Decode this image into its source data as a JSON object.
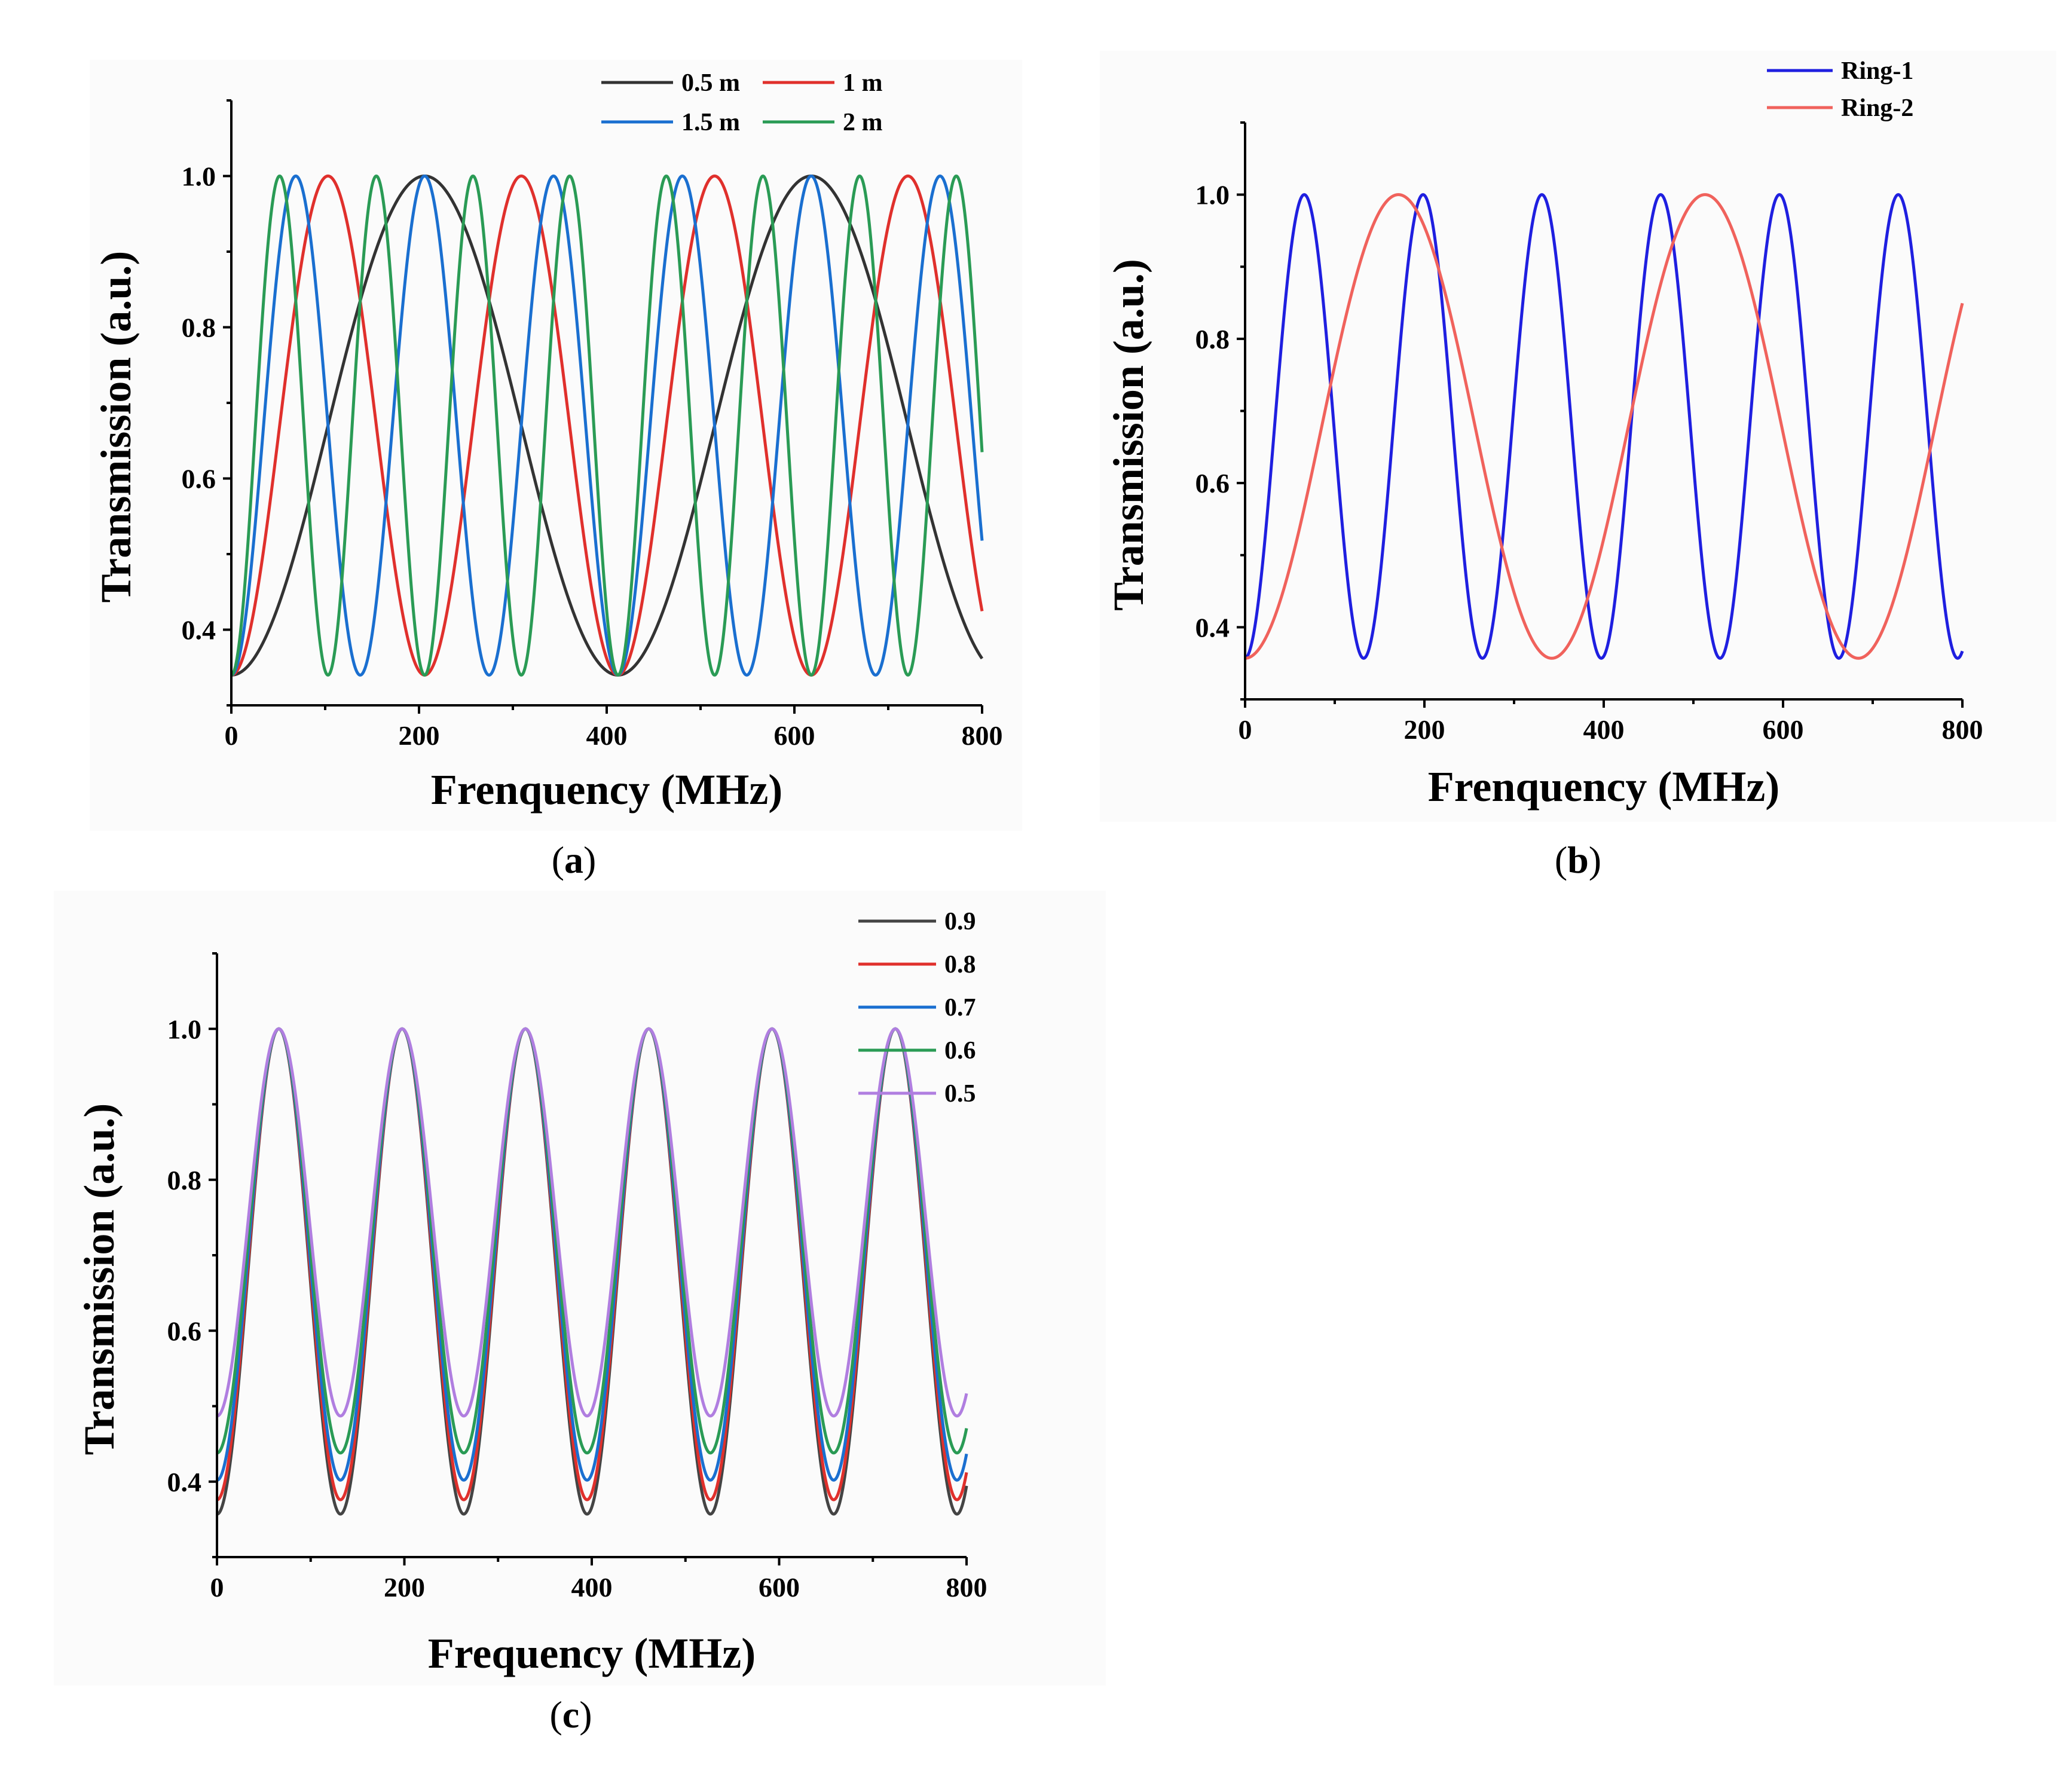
{
  "figure": {
    "panel_labels": [
      "a",
      "b",
      "c"
    ]
  },
  "chart_data": [
    {
      "id": "a",
      "type": "line",
      "xlabel": "Frenquency (MHz)",
      "ylabel": "Transmission (a.u.)",
      "xlim": [
        0,
        800
      ],
      "ylim": [
        0.3,
        1.1
      ],
      "xticks": [
        0,
        200,
        400,
        600,
        800
      ],
      "yticks": [
        0.4,
        0.6,
        0.8,
        1.0
      ],
      "xtick_labels": [
        "0",
        "200",
        "400",
        "600",
        "800"
      ],
      "ytick_labels": [
        "0.4",
        "0.6",
        "0.8",
        "1.0"
      ],
      "legend_position": "top-right",
      "model": {
        "min": 0.34,
        "max": 1.0
      },
      "series": [
        {
          "name": "0.5 m",
          "color": "#333333",
          "fsr": 412,
          "peak_offset": 206,
          "sharpness": 1.0
        },
        {
          "name": "1 m",
          "color": "#e0302c",
          "fsr": 206,
          "peak_offset": 103,
          "sharpness": 1.0
        },
        {
          "name": "1.5 m",
          "color": "#1a6fd0",
          "fsr": 137.3,
          "peak_offset": 68.7,
          "sharpness": 1.0
        },
        {
          "name": "2 m",
          "color": "#2a9b55",
          "fsr": 103,
          "peak_offset": 51.5,
          "sharpness": 1.0
        }
      ]
    },
    {
      "id": "b",
      "type": "line",
      "xlabel": "Frenquency (MHz)",
      "ylabel": "Transmission (a.u.)",
      "xlim": [
        0,
        800
      ],
      "ylim": [
        0.3,
        1.1
      ],
      "xticks": [
        0,
        200,
        400,
        600,
        800
      ],
      "yticks": [
        0.4,
        0.6,
        0.8,
        1.0
      ],
      "xtick_labels": [
        "0",
        "200",
        "400",
        "600",
        "800"
      ],
      "ytick_labels": [
        "0.4",
        "0.6",
        "0.8",
        "1.0"
      ],
      "legend_position": "top-right",
      "model": {
        "min": 0.357,
        "max": 1.0
      },
      "series": [
        {
          "name": "Ring-1",
          "color": "#1f1fe0",
          "fsr": 132.5,
          "peak_offset": 66,
          "sharpness": 1.0
        },
        {
          "name": "Ring-2",
          "color": "#f0625c",
          "fsr": 342,
          "peak_offset": 171,
          "sharpness": 1.0
        }
      ]
    },
    {
      "id": "c",
      "type": "line",
      "xlabel": "Frequency (MHz)",
      "ylabel": "Transmission (a.u.)",
      "xlim": [
        0,
        800
      ],
      "ylim": [
        0.3,
        1.1
      ],
      "xticks": [
        0,
        200,
        400,
        600,
        800
      ],
      "yticks": [
        0.4,
        0.6,
        0.8,
        1.0
      ],
      "xtick_labels": [
        "0",
        "200",
        "400",
        "600",
        "800"
      ],
      "ytick_labels": [
        "0.4",
        "0.6",
        "0.8",
        "1.0"
      ],
      "legend_position": "top-right",
      "model": {
        "max": 1.0
      },
      "series": [
        {
          "name": "0.9",
          "color": "#444444",
          "fsr": 131.6,
          "peak_offset": 66,
          "min": 0.357,
          "sharpness": 1.0
        },
        {
          "name": "0.8",
          "color": "#e0302c",
          "fsr": 131.6,
          "peak_offset": 66,
          "min": 0.376,
          "sharpness": 1.0
        },
        {
          "name": "0.7",
          "color": "#1a6fd0",
          "fsr": 131.6,
          "peak_offset": 66,
          "min": 0.402,
          "sharpness": 1.0
        },
        {
          "name": "0.6",
          "color": "#2a9b55",
          "fsr": 131.6,
          "peak_offset": 66,
          "min": 0.438,
          "sharpness": 1.0
        },
        {
          "name": "0.5",
          "color": "#b07ee0",
          "fsr": 131.6,
          "peak_offset": 66,
          "min": 0.487,
          "sharpness": 1.0
        }
      ]
    }
  ]
}
